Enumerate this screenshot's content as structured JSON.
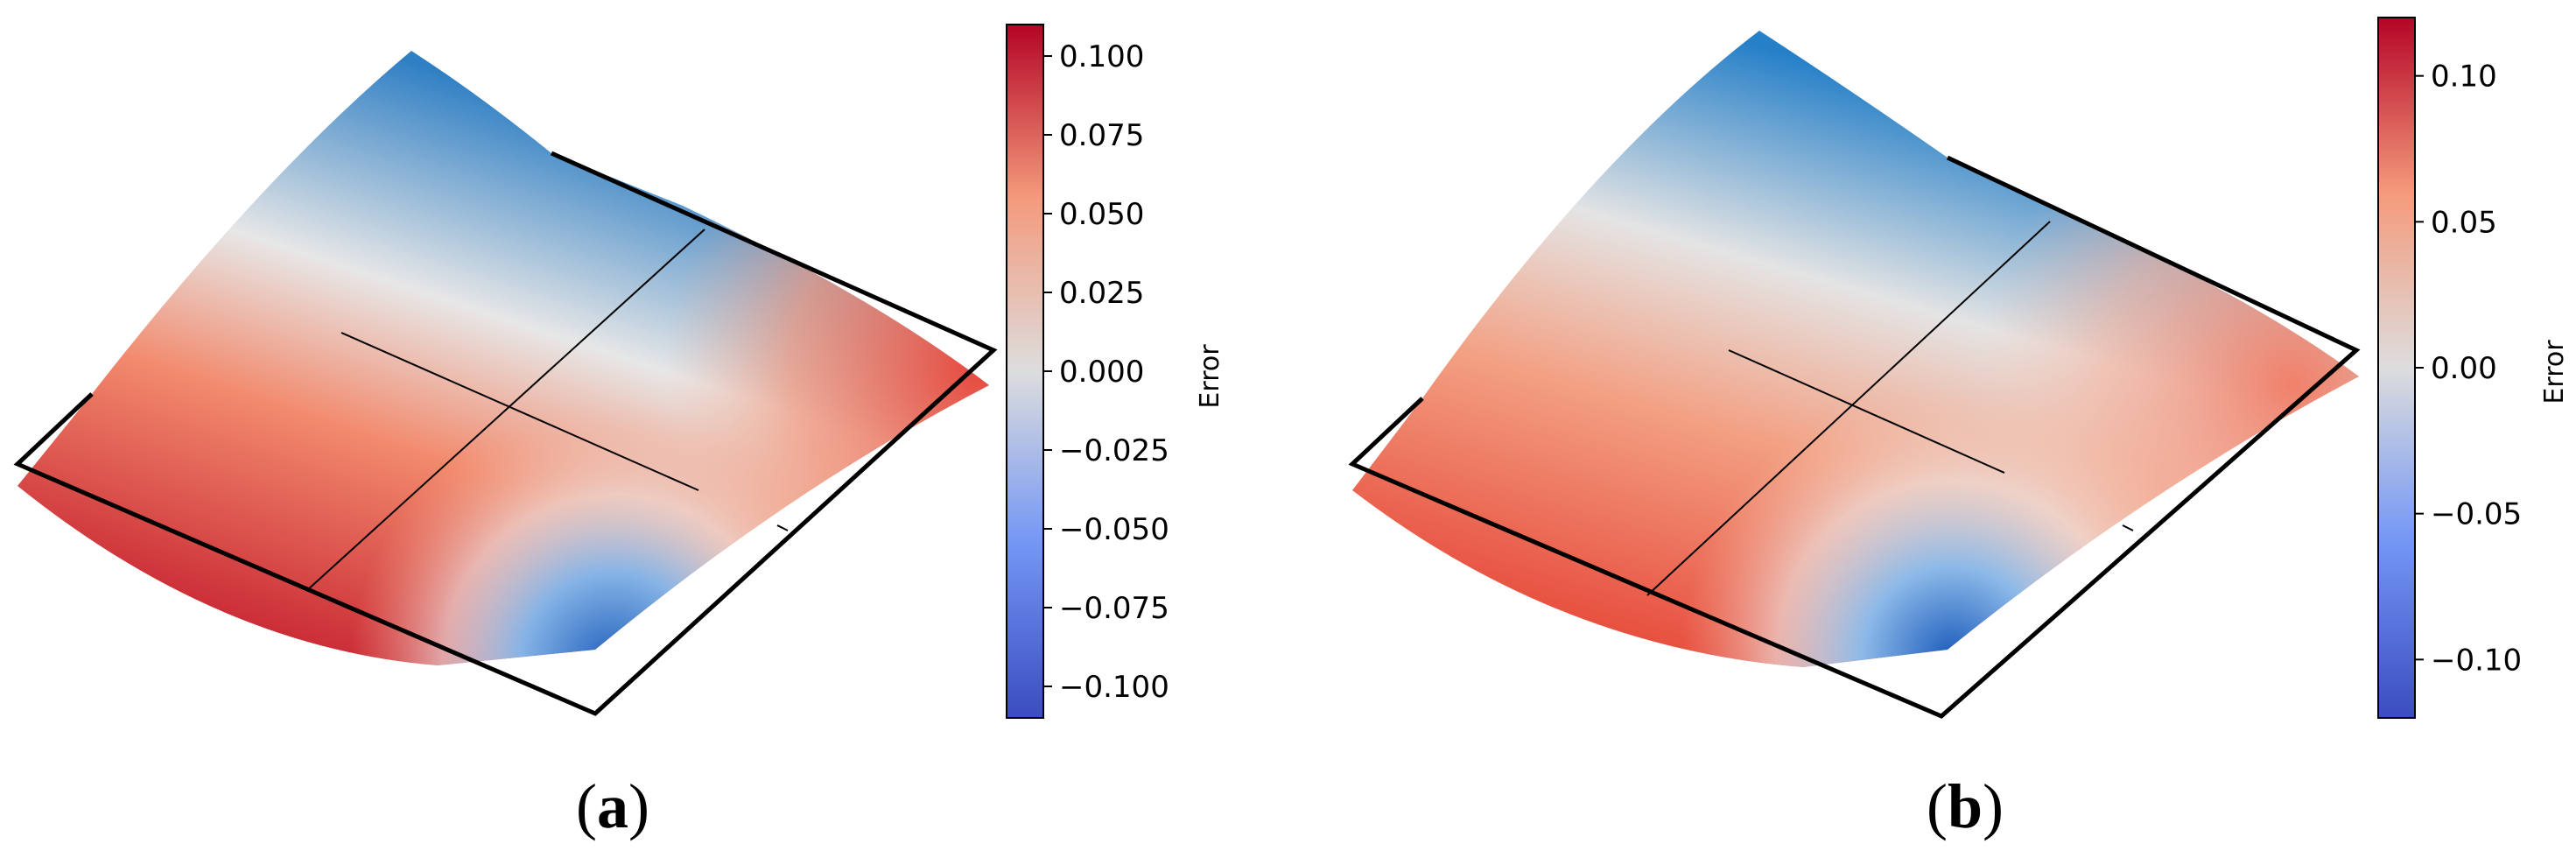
{
  "chart_data": [
    {
      "type": "heatmap",
      "panel_label": "(a)",
      "panel_letter": "a",
      "colormap": [
        "#3b4cc0",
        "#7396f5",
        "#dddddd",
        "#f49a7b",
        "#b40426"
      ],
      "colorbar": {
        "label": "Error",
        "range": [
          -0.11,
          0.11
        ],
        "ticks": [
          -0.1,
          -0.075,
          -0.05,
          -0.025,
          0.0,
          0.025,
          0.05,
          0.075,
          0.1
        ],
        "tick_labels": [
          "−0.100",
          "−0.075",
          "−0.050",
          "−0.025",
          "0.000",
          "0.025",
          "0.050",
          "0.075",
          "0.100"
        ]
      },
      "surface": {
        "description_min": -0.1,
        "description_max": 0.1,
        "color_stops": [
          {
            "u": 0.0,
            "v": 0.0,
            "value": -0.1
          },
          {
            "u": 0.0,
            "v": 1.0,
            "value": 0.1
          },
          {
            "u": 1.0,
            "v": 1.0,
            "value": -0.1
          },
          {
            "u": 1.0,
            "v": 0.0,
            "value": 0.08
          },
          {
            "u": 0.5,
            "v": 0.5,
            "value": 0.04
          }
        ]
      }
    },
    {
      "type": "heatmap",
      "panel_label": "(b)",
      "panel_letter": "b",
      "colormap": [
        "#3b4cc0",
        "#7396f5",
        "#dddddd",
        "#f49a7b",
        "#b40426"
      ],
      "colorbar": {
        "label": "Error",
        "range": [
          -0.12,
          0.12
        ],
        "ticks": [
          -0.1,
          -0.05,
          0.0,
          0.05,
          0.1
        ],
        "tick_labels": [
          "−0.10",
          "−0.05",
          "0.00",
          "0.05",
          "0.10"
        ]
      },
      "surface": {
        "description_min": -0.1,
        "description_max": 0.08,
        "color_stops": [
          {
            "u": 0.0,
            "v": 0.0,
            "value": -0.1
          },
          {
            "u": 0.0,
            "v": 1.0,
            "value": 0.07
          },
          {
            "u": 1.0,
            "v": 1.0,
            "value": -0.1
          },
          {
            "u": 1.0,
            "v": 0.0,
            "value": 0.05
          },
          {
            "u": 0.5,
            "v": 0.5,
            "value": 0.03
          }
        ]
      }
    }
  ]
}
